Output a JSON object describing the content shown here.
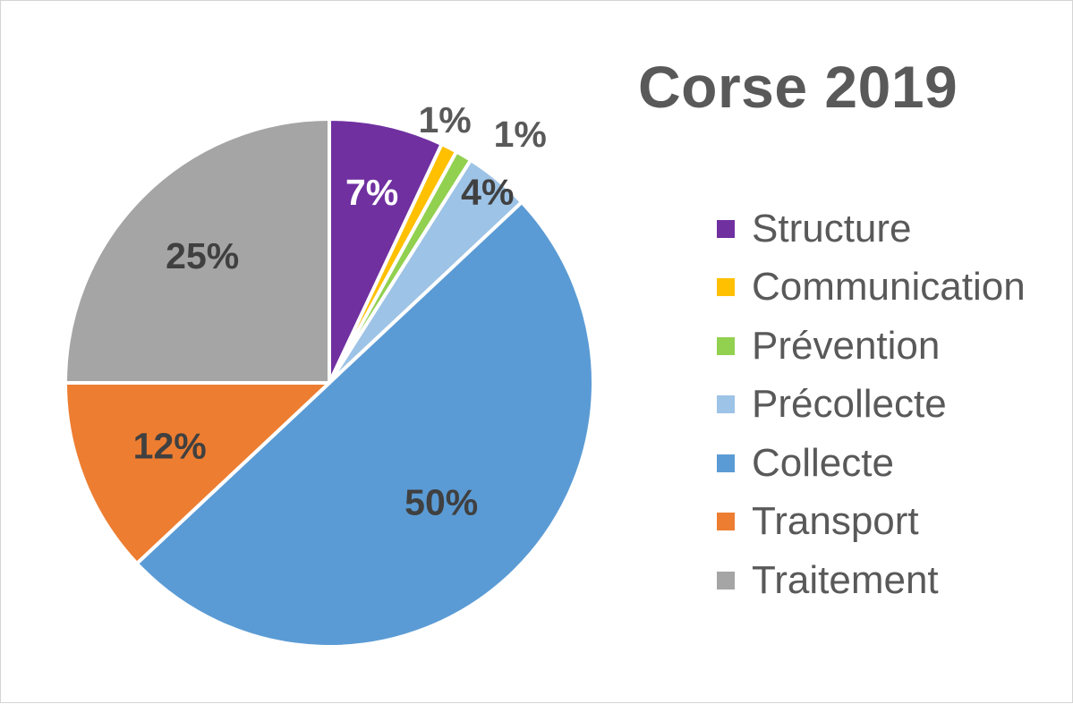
{
  "chart_data": {
    "type": "pie",
    "title": "Corse 2019",
    "legend_position": "right",
    "slices": [
      {
        "name": "Structure",
        "value": 7,
        "label": "7%",
        "color": "#7030A0",
        "label_color": "#ffffff"
      },
      {
        "name": "Communication",
        "value": 1,
        "label": "1%",
        "color": "#FFC000",
        "label_color": "#595959"
      },
      {
        "name": "Prévention",
        "value": 1,
        "label": "1%",
        "color": "#92D050",
        "label_color": "#595959"
      },
      {
        "name": "Précollecte",
        "value": 4,
        "label": "4%",
        "color": "#9DC3E6",
        "label_color": "#404040"
      },
      {
        "name": "Collecte",
        "value": 50,
        "label": "50%",
        "color": "#5B9BD5",
        "label_color": "#404040"
      },
      {
        "name": "Transport",
        "value": 12,
        "label": "12%",
        "color": "#ED7D31",
        "label_color": "#404040"
      },
      {
        "name": "Traitement",
        "value": 25,
        "label": "25%",
        "color": "#A5A5A5",
        "label_color": "#404040"
      }
    ]
  }
}
